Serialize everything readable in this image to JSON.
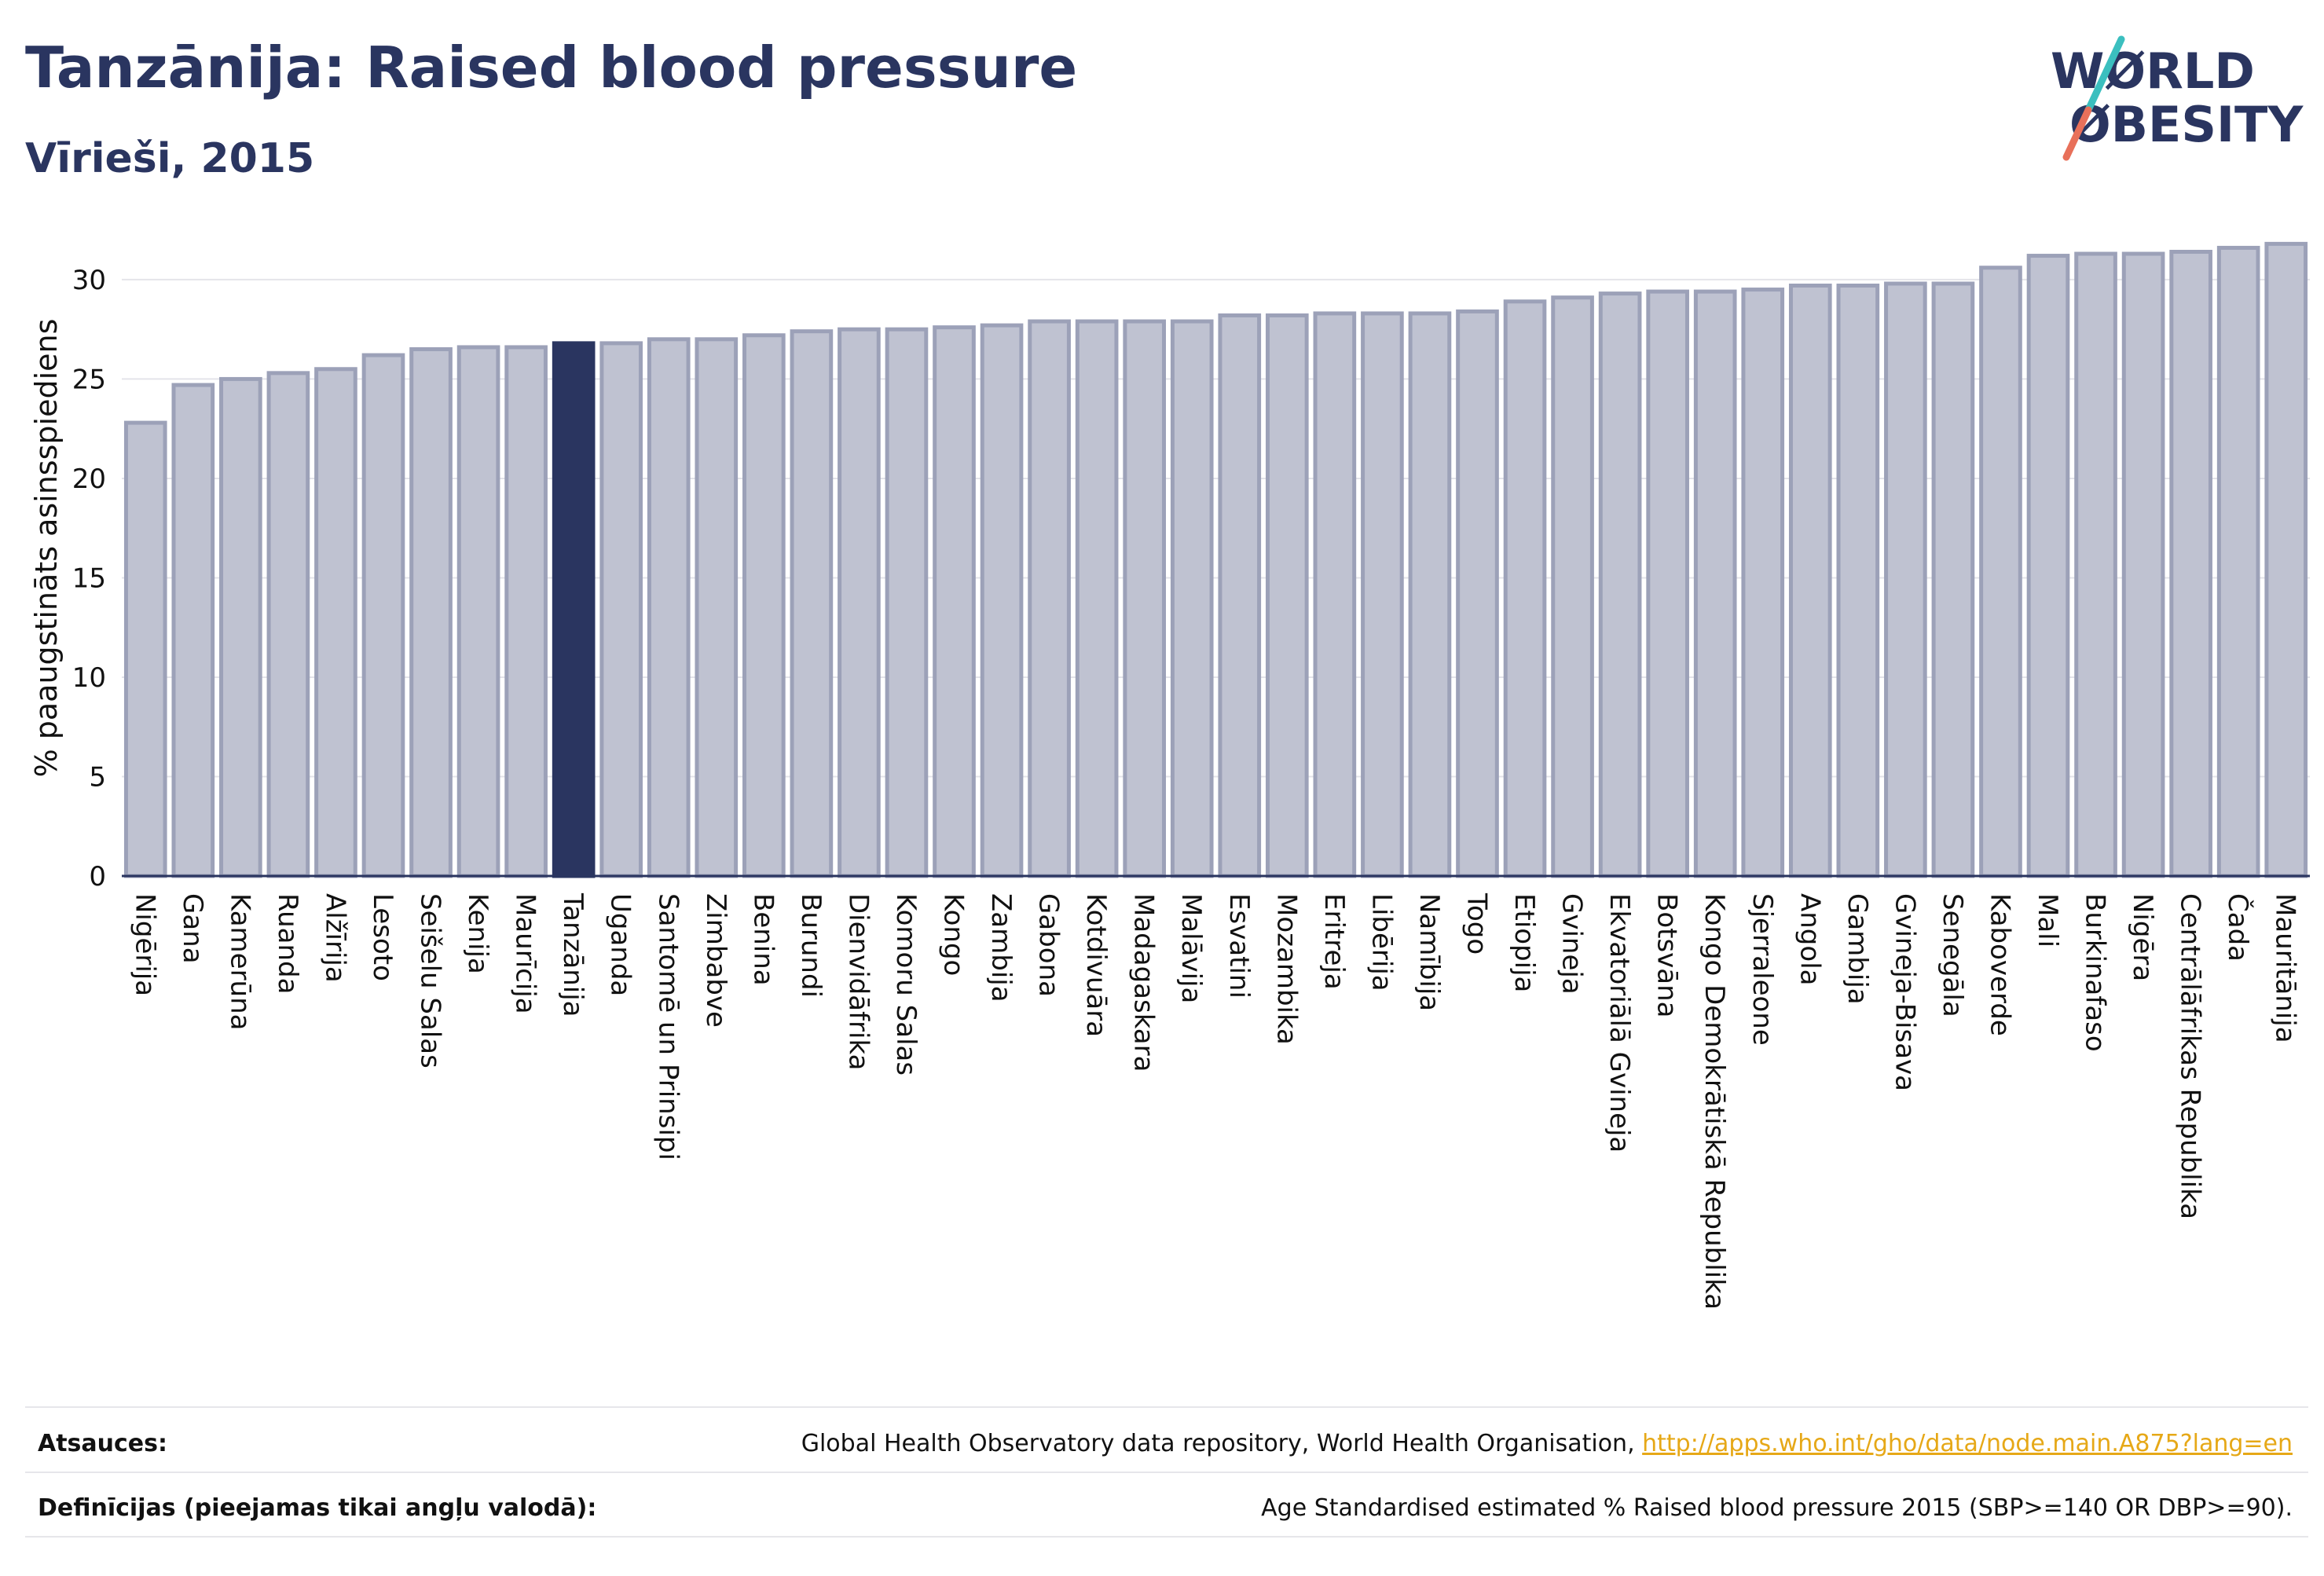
{
  "header": {
    "title": "Tanzānija: Raised blood pressure",
    "subtitle": "Vīrieši, 2015"
  },
  "logo": {
    "line1": "WØRLD",
    "line2": "ØBESITY"
  },
  "colors": {
    "bar": "#bfc2d1",
    "bar_edge": "#9ca1b8",
    "highlight": "#2a3560",
    "grid": "#e4e4ea",
    "axis": "#2a3560",
    "link": "#e6a817"
  },
  "chart_data": {
    "type": "bar",
    "ylabel": "% paaugstināts asinsspiediens",
    "ylim": [
      0,
      33
    ],
    "yticks": [
      0,
      5,
      10,
      15,
      20,
      25,
      30
    ],
    "grid": true,
    "highlight": "Tanzānija",
    "categories": [
      "Nigērija",
      "Gana",
      "Kamerūna",
      "Ruanda",
      "Alžīrija",
      "Lesoto",
      "Seišelu Salas",
      "Kenija",
      "Maurīcija",
      "Tanzānija",
      "Uganda",
      "Santomē un Prinsipi",
      "Zimbabve",
      "Benina",
      "Burundi",
      "Dienvidāfrika",
      "Komoru Salas",
      "Kongo",
      "Zambija",
      "Gabona",
      "Kotdivuāra",
      "Madagaskara",
      "Malāvija",
      "Esvatini",
      "Mozambika",
      "Eritreja",
      "Libērija",
      "Namībija",
      "Togo",
      "Etiopija",
      "Gvineja",
      "Ekvatoriālā Gvineja",
      "Botsvāna",
      "Kongo Demokrātiskā Republika",
      "Sjerraleone",
      "Angola",
      "Gambija",
      "Gvineja-Bisava",
      "Senegāla",
      "Kaboverde",
      "Mali",
      "Burkinafaso",
      "Nigēra",
      "Centrālāfrikas Republika",
      "Čada",
      "Mauritānija"
    ],
    "values": [
      22.8,
      24.7,
      25.0,
      25.3,
      25.5,
      26.2,
      26.5,
      26.6,
      26.6,
      26.8,
      26.8,
      27.0,
      27.0,
      27.2,
      27.4,
      27.5,
      27.5,
      27.6,
      27.7,
      27.9,
      27.9,
      27.9,
      27.9,
      28.2,
      28.2,
      28.3,
      28.3,
      28.3,
      28.4,
      28.9,
      29.1,
      29.3,
      29.4,
      29.4,
      29.5,
      29.7,
      29.7,
      29.8,
      29.8,
      30.6,
      31.2,
      31.3,
      31.3,
      31.4,
      31.6,
      31.8
    ]
  },
  "footer": {
    "sources_label": "Atsauces:",
    "sources_text": "Global Health Observatory data repository, World Health Organisation, ",
    "sources_link": "http://apps.who.int/gho/data/node.main.A875?lang=en",
    "definitions_label": "Definīcijas (pieejamas tikai angļu valodā):",
    "definitions_text": "Age Standardised estimated % Raised blood pressure 2015 (SBP>=140 OR DBP>=90)."
  }
}
